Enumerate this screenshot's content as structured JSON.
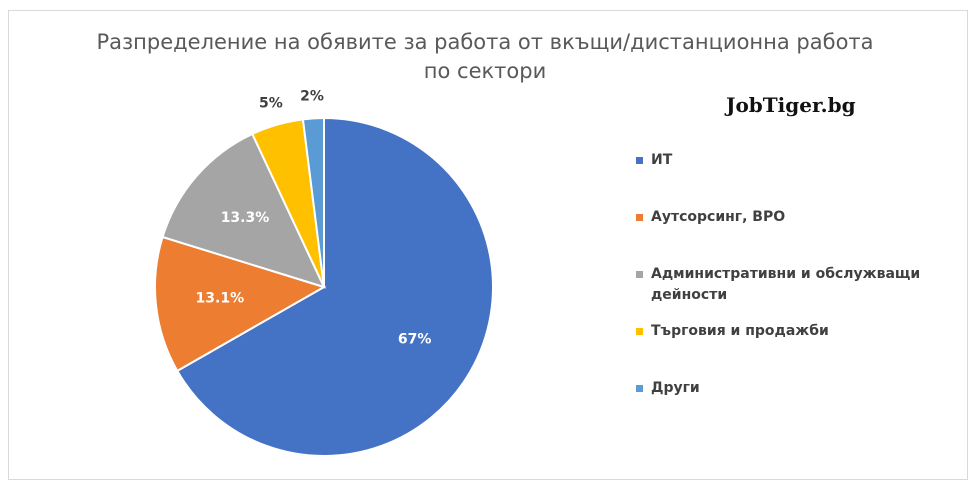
{
  "chart_data": {
    "type": "pie",
    "title_line1": "Разпределение на обявите за работа от вкъщи/дистанционна работа",
    "title_line2": "по сектори",
    "categories": [
      "ИТ",
      "Аутсорсинг, BPO",
      "Административни и обслужващи дейности",
      "Търговия и продажби",
      "Други"
    ],
    "values": [
      67,
      13.1,
      13.3,
      5,
      2
    ],
    "data_labels": [
      "67%",
      "13.1%",
      "13.3%",
      "5%",
      "2%"
    ],
    "colors": [
      "#4472c4",
      "#ed7d31",
      "#a5a5a5",
      "#ffc000",
      "#5b9bd5"
    ],
    "legend": "right"
  },
  "brand": {
    "text": "JobTiger.bg"
  }
}
